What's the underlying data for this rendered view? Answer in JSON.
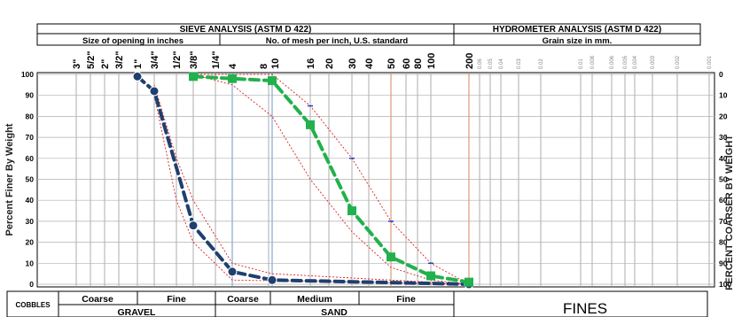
{
  "header": {
    "sieve_title": "SIEVE ANALYSIS (ASTM D 422)",
    "hydro_title": "HYDROMETER ANALYSIS (ASTM D 422)",
    "size_inches_label": "Size of opening in inches",
    "mesh_label": "No. of mesh per inch, U.S. standard",
    "grain_label": "Grain size in mm."
  },
  "axes": {
    "ylabel_left": "Percent Finer By Weight",
    "ylabel_right": "PERCENT COARSER BY WEIGHT",
    "left_ticks": [
      "100",
      "90",
      "80",
      "70",
      "60",
      "50",
      "40",
      "30",
      "20",
      "10",
      "0"
    ],
    "right_ticks": [
      "0",
      "10",
      "20",
      "30",
      "40",
      "50",
      "60",
      "70",
      "80",
      "90",
      "100"
    ]
  },
  "sieves": {
    "inch_labels": [
      "3\"",
      "5/2\"",
      "2\"",
      "3/2\"",
      "1\"",
      "3/4\"",
      "1/2\"",
      "3/8\"",
      "1/4\""
    ],
    "mesh_labels": [
      "4",
      "8",
      "10",
      "16",
      "20",
      "30",
      "40",
      "50",
      "60",
      "80",
      "100",
      "200"
    ],
    "hydro_labels": [
      "0.06",
      "0.05",
      "0.04",
      "0.03",
      "0.02",
      "0.01",
      "0.008",
      "0.006",
      "0.005",
      "0.004",
      "0.003",
      "0.002",
      "0.001"
    ]
  },
  "classification": {
    "cobbles": "COBBLES",
    "gravel": "GRAVEL",
    "gravel_coarse": "Coarse",
    "gravel_fine": "Fine",
    "sand": "SAND",
    "sand_coarse": "Coarse",
    "sand_medium": "Medium",
    "sand_fine": "Fine",
    "fines": "FINES"
  },
  "chart_data": {
    "type": "line",
    "x_scale": "log",
    "x_unit": "mm",
    "ylim": [
      0,
      100
    ],
    "y2lim": [
      100,
      0
    ],
    "series": [
      {
        "color": "#1f3f6e",
        "style": "dashed",
        "marker": "circle",
        "points": [
          [
            25.4,
            99
          ],
          [
            19.0,
            92
          ],
          [
            9.5,
            28
          ],
          [
            4.75,
            6
          ],
          [
            2.0,
            2
          ],
          [
            0.075,
            0
          ]
        ]
      },
      {
        "color": "#22b14c",
        "style": "dashed",
        "marker": "square",
        "points": [
          [
            9.5,
            99
          ],
          [
            4.75,
            98
          ],
          [
            2.0,
            97
          ],
          [
            1.18,
            76
          ],
          [
            0.6,
            35
          ],
          [
            0.3,
            13
          ],
          [
            0.15,
            4
          ],
          [
            0.075,
            1
          ]
        ]
      }
    ],
    "envelopes": [
      {
        "color": "#e02020",
        "style": "dotted",
        "points": [
          [
            19.0,
            95
          ],
          [
            12.5,
            60
          ],
          [
            9.5,
            40
          ],
          [
            4.75,
            10
          ],
          [
            2.0,
            5
          ],
          [
            0.075,
            0
          ]
        ]
      },
      {
        "color": "#e02020",
        "style": "dotted",
        "points": [
          [
            19.0,
            90
          ],
          [
            12.5,
            40
          ],
          [
            9.5,
            20
          ],
          [
            4.75,
            2
          ],
          [
            0.075,
            0
          ]
        ]
      },
      {
        "color": "#e02020",
        "style": "dotted",
        "points": [
          [
            9.5,
            100
          ],
          [
            4.75,
            95
          ],
          [
            2.0,
            80
          ],
          [
            1.18,
            50
          ],
          [
            0.6,
            25
          ],
          [
            0.3,
            8
          ],
          [
            0.15,
            2
          ],
          [
            0.075,
            0
          ]
        ]
      },
      {
        "color": "#e02020",
        "style": "dotted",
        "points": [
          [
            9.5,
            100
          ],
          [
            2.0,
            100
          ],
          [
            1.18,
            85
          ],
          [
            0.6,
            60
          ],
          [
            0.3,
            30
          ],
          [
            0.15,
            10
          ],
          [
            0.075,
            0
          ]
        ]
      }
    ]
  }
}
